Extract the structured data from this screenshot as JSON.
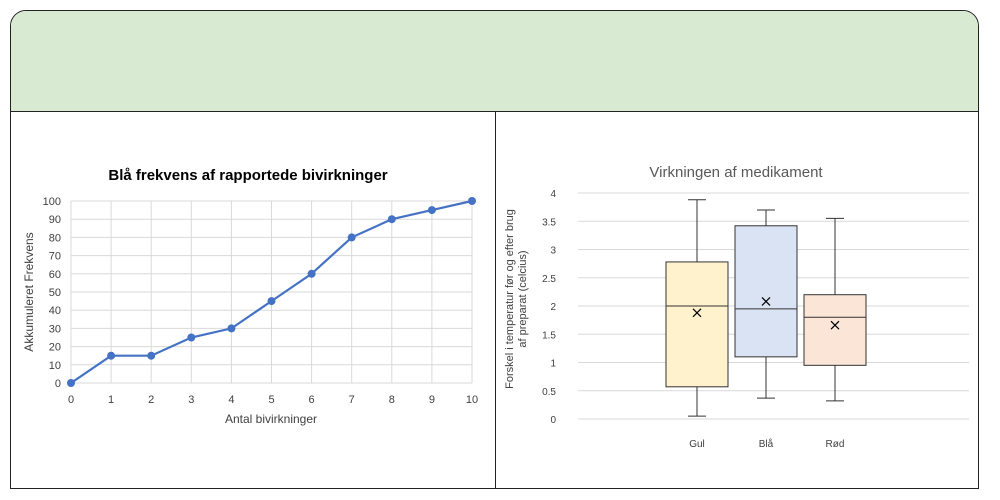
{
  "banner": {
    "text": ""
  },
  "chart_data": [
    {
      "type": "line",
      "title": "Blå frekvens af rapportede bivirkninger",
      "xlabel": "Antal bivirkninger",
      "ylabel": "Akkumuleret Frekvens",
      "x": [
        0,
        1,
        2,
        3,
        4,
        5,
        6,
        7,
        8,
        9,
        10
      ],
      "series": [
        {
          "values": [
            0,
            15,
            15,
            25,
            30,
            45,
            60,
            80,
            90,
            95,
            100
          ]
        }
      ],
      "xlim": [
        0,
        10
      ],
      "ylim": [
        0,
        100
      ],
      "x_ticks": [
        "0",
        "1",
        "2",
        "3",
        "4",
        "5",
        "6",
        "7",
        "8",
        "9",
        "10"
      ],
      "y_ticks": [
        "0",
        "10",
        "20",
        "30",
        "40",
        "50",
        "60",
        "70",
        "80",
        "90",
        "100"
      ],
      "grid": true,
      "color": "#4472c4"
    },
    {
      "type": "box",
      "title": "Virkningen af medikament",
      "xlabel": "",
      "ylabel_lines": [
        "Forskel i temperatur før og efter brug",
        "af preparat (celcius)"
      ],
      "categories": [
        "Gul",
        "Blå",
        "Rød"
      ],
      "boxes": [
        {
          "min": 0.05,
          "q1": 0.57,
          "median": 2.0,
          "q3": 2.78,
          "max": 3.88,
          "mean": 1.88,
          "fill": "#fff2cc",
          "stroke": "#333333"
        },
        {
          "min": 0.37,
          "q1": 1.1,
          "median": 1.95,
          "q3": 3.42,
          "max": 3.7,
          "mean": 2.08,
          "fill": "#dae3f3",
          "stroke": "#333333"
        },
        {
          "min": 0.32,
          "q1": 0.95,
          "median": 1.8,
          "q3": 2.2,
          "max": 3.55,
          "mean": 1.66,
          "fill": "#fbe5d6",
          "stroke": "#333333"
        }
      ],
      "ylim": [
        0,
        4
      ],
      "y_ticks": [
        "0",
        "0.5",
        "1",
        "1.5",
        "2",
        "2.5",
        "3",
        "3.5",
        "4"
      ],
      "grid": true
    }
  ]
}
